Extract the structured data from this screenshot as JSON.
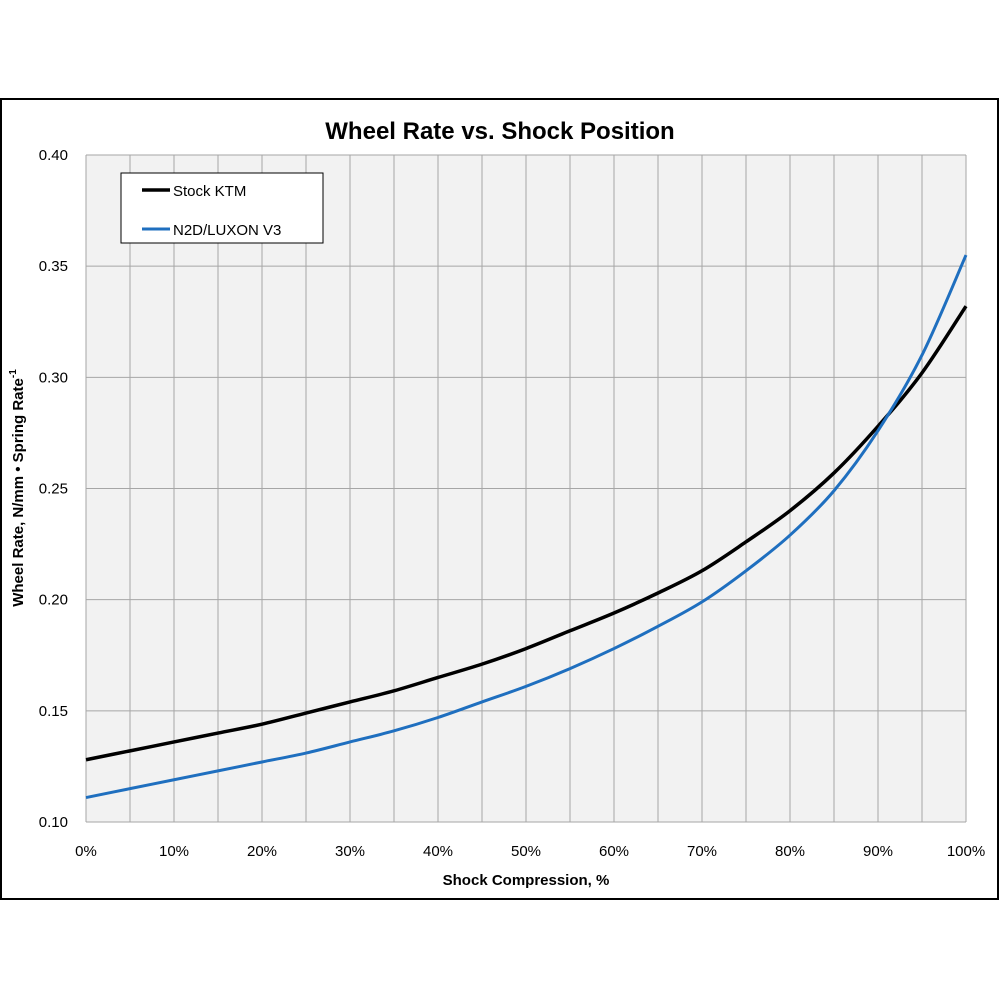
{
  "chart_data": {
    "type": "line",
    "title": "Wheel Rate vs. Shock Position",
    "xlabel": "Shock Compression, %",
    "ylabel": "Wheel Rate, N/mm • Spring Rate",
    "ylabel_sup": "-1",
    "xlim": [
      0,
      100
    ],
    "ylim": [
      0.1,
      0.4
    ],
    "x_ticks": [
      0,
      10,
      20,
      30,
      40,
      50,
      60,
      70,
      80,
      90,
      100
    ],
    "x_tick_labels": [
      "0%",
      "10%",
      "20%",
      "30%",
      "40%",
      "50%",
      "60%",
      "70%",
      "80%",
      "90%",
      "100%"
    ],
    "y_ticks": [
      0.1,
      0.15,
      0.2,
      0.25,
      0.3,
      0.35,
      0.4
    ],
    "y_tick_labels": [
      "0.10",
      "0.15",
      "0.20",
      "0.25",
      "0.30",
      "0.35",
      "0.40"
    ],
    "grid": true,
    "legend_position": "top-left",
    "x": [
      0,
      5,
      10,
      15,
      20,
      25,
      30,
      35,
      40,
      45,
      50,
      55,
      60,
      65,
      70,
      75,
      80,
      85,
      90,
      95,
      100
    ],
    "series": [
      {
        "name": "Stock KTM",
        "color": "#000000",
        "values": [
          0.128,
          0.132,
          0.136,
          0.14,
          0.144,
          0.149,
          0.154,
          0.159,
          0.165,
          0.171,
          0.178,
          0.186,
          0.194,
          0.203,
          0.213,
          0.226,
          0.24,
          0.257,
          0.278,
          0.302,
          0.332
        ]
      },
      {
        "name": "N2D/LUXON V3",
        "color": "#1f6fbf",
        "values": [
          0.111,
          0.115,
          0.119,
          0.123,
          0.127,
          0.131,
          0.136,
          0.141,
          0.147,
          0.154,
          0.161,
          0.169,
          0.178,
          0.188,
          0.199,
          0.213,
          0.229,
          0.249,
          0.276,
          0.31,
          0.355
        ]
      }
    ]
  }
}
